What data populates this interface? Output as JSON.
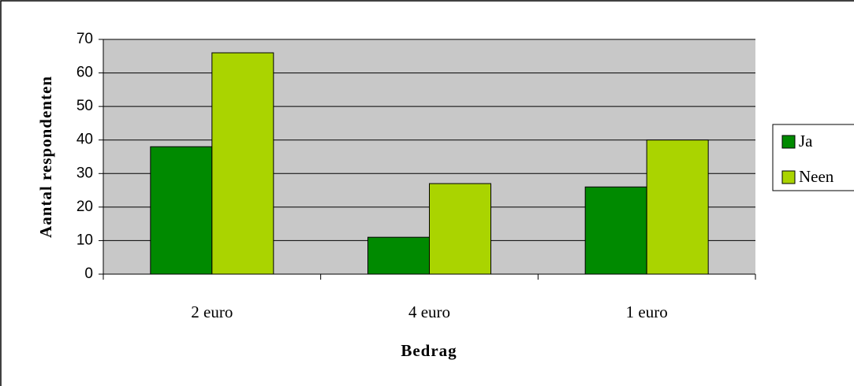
{
  "chart_data": {
    "type": "bar",
    "categories": [
      "2 euro",
      "4 euro",
      "1 euro"
    ],
    "series": [
      {
        "name": "Ja",
        "color": "#008a00",
        "values": [
          38,
          11,
          26
        ]
      },
      {
        "name": "Neen",
        "color": "#aad400",
        "values": [
          66,
          27,
          40
        ]
      }
    ],
    "x_label": "Bedrag",
    "y_label": "Aantal respondenten",
    "ylim": [
      0,
      70
    ],
    "yticks": [
      0,
      10,
      20,
      30,
      40,
      50,
      60,
      70
    ],
    "grid": true,
    "legend": "right"
  }
}
